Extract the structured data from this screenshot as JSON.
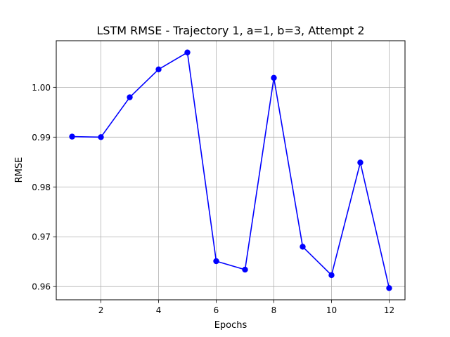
{
  "chart_data": {
    "type": "line",
    "title": "LSTM RMSE - Trajectory 1, a=1, b=3, Attempt 2",
    "xlabel": "Epochs",
    "ylabel": "RMSE",
    "x": [
      1,
      2,
      3,
      4,
      5,
      6,
      7,
      8,
      9,
      10,
      11,
      12
    ],
    "series": [
      {
        "values": [
          0.9901,
          0.99,
          0.998,
          1.0036,
          1.007,
          0.9651,
          0.9634,
          1.0019,
          0.968,
          0.9623,
          0.9849,
          0.9597
        ],
        "color": "#0000ff",
        "marker": "circle"
      }
    ],
    "xlim": [
      0.45,
      12.55
    ],
    "ylim": [
      0.95735,
      1.00935
    ],
    "x_ticks": [
      2,
      4,
      6,
      8,
      10,
      12
    ],
    "x_tick_labels": [
      "2",
      "4",
      "6",
      "8",
      "10",
      "12"
    ],
    "y_ticks": [
      0.96,
      0.97,
      0.98,
      0.99,
      1.0
    ],
    "y_tick_labels": [
      "0.96",
      "0.97",
      "0.98",
      "0.99",
      "1.00"
    ],
    "grid": true,
    "grid_color": "#b0b0b0",
    "legend": "none"
  }
}
